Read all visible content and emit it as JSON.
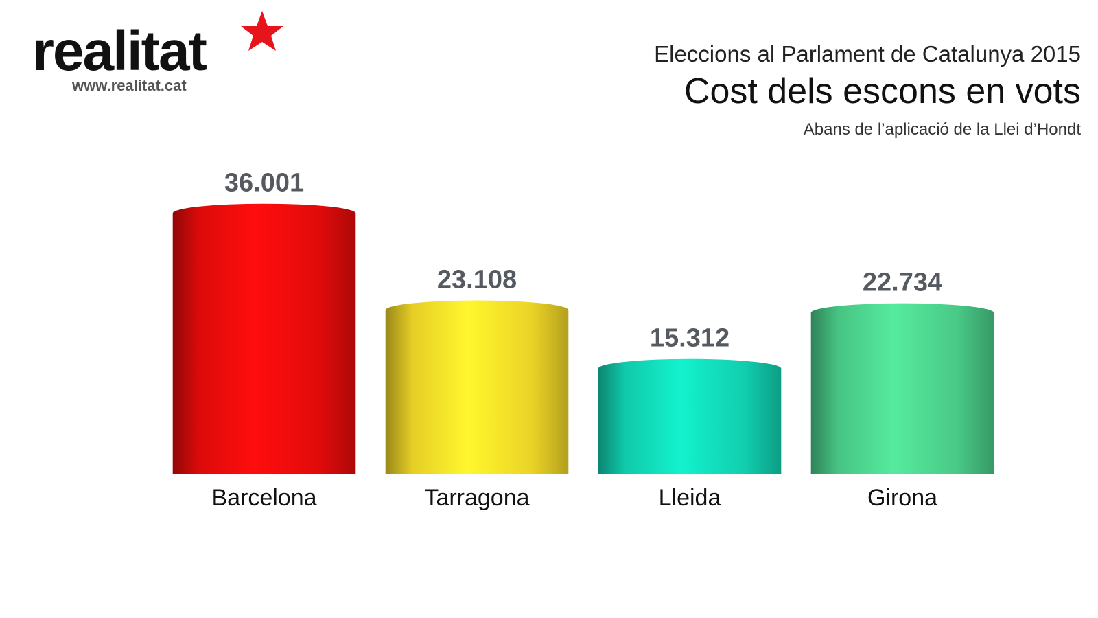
{
  "logo": {
    "name": "realitat",
    "url": "www.realitat.cat"
  },
  "chart_data": {
    "type": "bar",
    "supertitle": "Eleccions al Parlament de Catalunya 2015",
    "title": "Cost dels escons en vots",
    "subtitle": "Abans de l’aplicació de la Llei d’Hondt",
    "categories": [
      "Barcelona",
      "Tarragona",
      "Lleida",
      "Girona"
    ],
    "values": [
      36001,
      23108,
      15312,
      22734
    ],
    "value_labels": [
      "36.001",
      "23.108",
      "15.312",
      "22.734"
    ],
    "colors": [
      "#f50c0c",
      "#ffe52a",
      "#12e0be",
      "#4fda92"
    ],
    "ylim": [
      0,
      40000
    ]
  }
}
